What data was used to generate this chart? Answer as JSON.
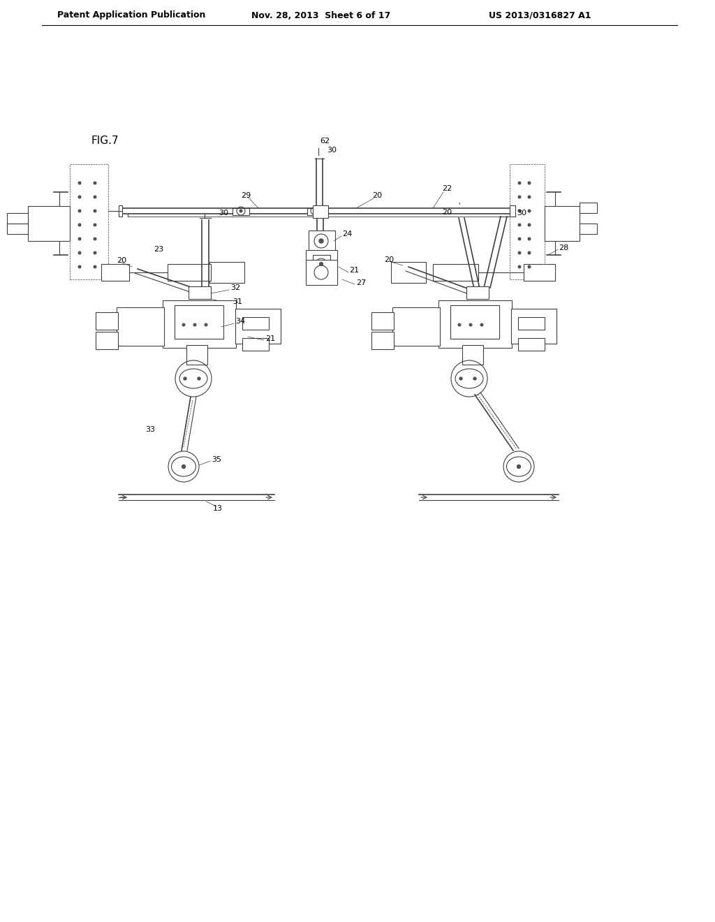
{
  "background_color": "#ffffff",
  "header_left": "Patent Application Publication",
  "header_center": "Nov. 28, 2013  Sheet 6 of 17",
  "header_right": "US 2013/0316827 A1",
  "fig_label": "FIG.7",
  "line_color": "#404040",
  "line_color2": "#606060",
  "line_width": 0.8,
  "thin_line": 0.5,
  "thick_line": 1.2,
  "dot_color": "#505050"
}
